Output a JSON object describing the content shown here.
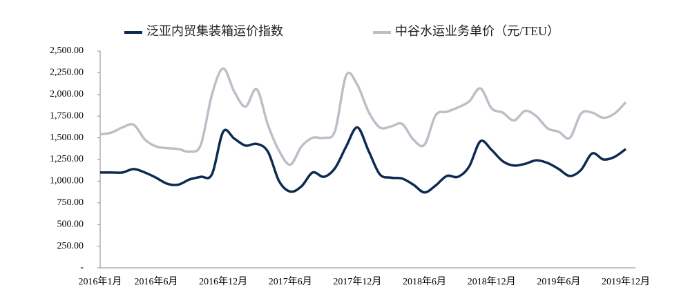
{
  "chart_data": {
    "type": "line",
    "categories": [
      "2016年1月",
      null,
      null,
      null,
      null,
      "2016年6月",
      null,
      null,
      null,
      null,
      null,
      "2016年12月",
      null,
      null,
      null,
      null,
      null,
      "2017年6月",
      null,
      null,
      null,
      null,
      null,
      "2017年12月",
      null,
      null,
      null,
      null,
      null,
      "2018年6月",
      null,
      null,
      null,
      null,
      null,
      "2018年12月",
      null,
      null,
      null,
      null,
      null,
      "2019年6月",
      null,
      null,
      null,
      null,
      null,
      "2019年12月"
    ],
    "series": [
      {
        "name": "泛亚内贸集装箱运价指数",
        "color": "#0d2a52",
        "values": [
          1100,
          1100,
          1100,
          1140,
          1100,
          1040,
          970,
          960,
          1020,
          1050,
          1080,
          1570,
          1490,
          1410,
          1430,
          1340,
          1000,
          880,
          940,
          1100,
          1050,
          1150,
          1400,
          1620,
          1350,
          1080,
          1040,
          1030,
          960,
          870,
          950,
          1060,
          1050,
          1170,
          1460,
          1360,
          1230,
          1180,
          1200,
          1240,
          1210,
          1140,
          1060,
          1130,
          1320,
          1250,
          1280,
          1370
        ]
      },
      {
        "name": "中谷水运业务单价（元/TEU）",
        "color": "#bdbfc8",
        "values": [
          1540,
          1560,
          1620,
          1650,
          1480,
          1400,
          1380,
          1370,
          1340,
          1420,
          2000,
          2300,
          2030,
          1860,
          2060,
          1650,
          1350,
          1190,
          1400,
          1500,
          1500,
          1580,
          2220,
          2110,
          1800,
          1620,
          1630,
          1660,
          1480,
          1420,
          1760,
          1800,
          1850,
          1920,
          2070,
          1840,
          1790,
          1700,
          1810,
          1750,
          1610,
          1570,
          1500,
          1780,
          1790,
          1730,
          1780,
          1910
        ]
      }
    ],
    "ylim": [
      0,
      2500
    ],
    "yticks": [
      {
        "value": 0,
        "label": "-"
      },
      {
        "value": 250,
        "label": "250.00"
      },
      {
        "value": 500,
        "label": "500.00"
      },
      {
        "value": 750,
        "label": "750.00"
      },
      {
        "value": 1000,
        "label": "1,000.00"
      },
      {
        "value": 1250,
        "label": "1,250.00"
      },
      {
        "value": 1500,
        "label": "1,500.00"
      },
      {
        "value": 1750,
        "label": "1,750.00"
      },
      {
        "value": 2000,
        "label": "2,000.00"
      },
      {
        "value": 2250,
        "label": "2,250.00"
      },
      {
        "value": 2500,
        "label": "2,500.00"
      }
    ],
    "grid": false,
    "legend": "top"
  }
}
